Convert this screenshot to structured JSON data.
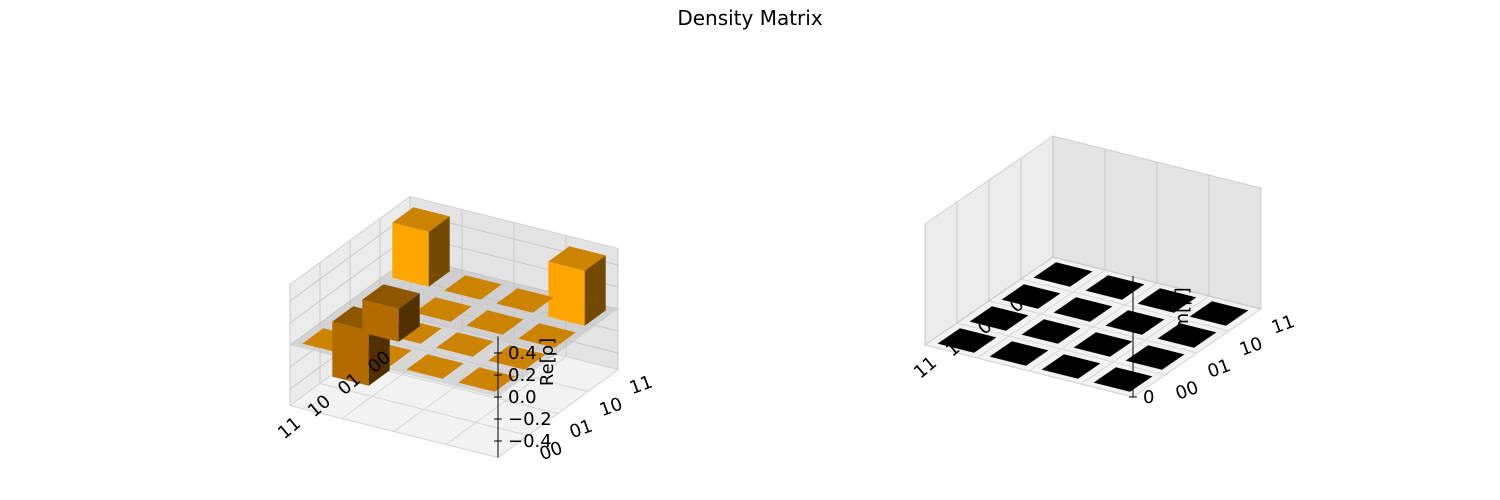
{
  "chart_data": [
    {
      "type": "bar3d",
      "title": "Density Matrix",
      "zlabel": "Re[ρ]",
      "row_ticks": [
        "00",
        "01",
        "10",
        "11"
      ],
      "col_ticks": [
        "00",
        "01",
        "10",
        "11"
      ],
      "zlim": [
        -0.5,
        0.5
      ],
      "zticks": [
        "0.4",
        "0.2",
        "0.0",
        "−0.2",
        "−0.4"
      ],
      "zticks_values": [
        0.4,
        0.2,
        0.0,
        -0.2,
        -0.4
      ],
      "values": [
        [
          0.5,
          0.0,
          0.0,
          0.5
        ],
        [
          -0.3,
          0.0,
          0.0,
          0.0
        ],
        [
          -0.5,
          0.0,
          0.0,
          0.0
        ],
        [
          0.0,
          0.0,
          0.0,
          0.0
        ]
      ],
      "colors": {
        "positive": "#ffa500",
        "negative": "#b36b00",
        "flat": "#cc8400",
        "plane": "#bfbfbf"
      }
    },
    {
      "type": "bar3d",
      "zlabel": "Im[ρ]",
      "row_ticks": [
        "00",
        "01",
        "10",
        "11"
      ],
      "col_ticks": [
        "00",
        "01",
        "10",
        "11"
      ],
      "zticks": [
        "0"
      ],
      "zticks_values": [
        0
      ],
      "values": [
        [
          0,
          0,
          0,
          0
        ],
        [
          0,
          0,
          0,
          0
        ],
        [
          0,
          0,
          0,
          0
        ],
        [
          0,
          0,
          0,
          0
        ]
      ],
      "colors": {
        "flat": "#000000"
      }
    }
  ]
}
